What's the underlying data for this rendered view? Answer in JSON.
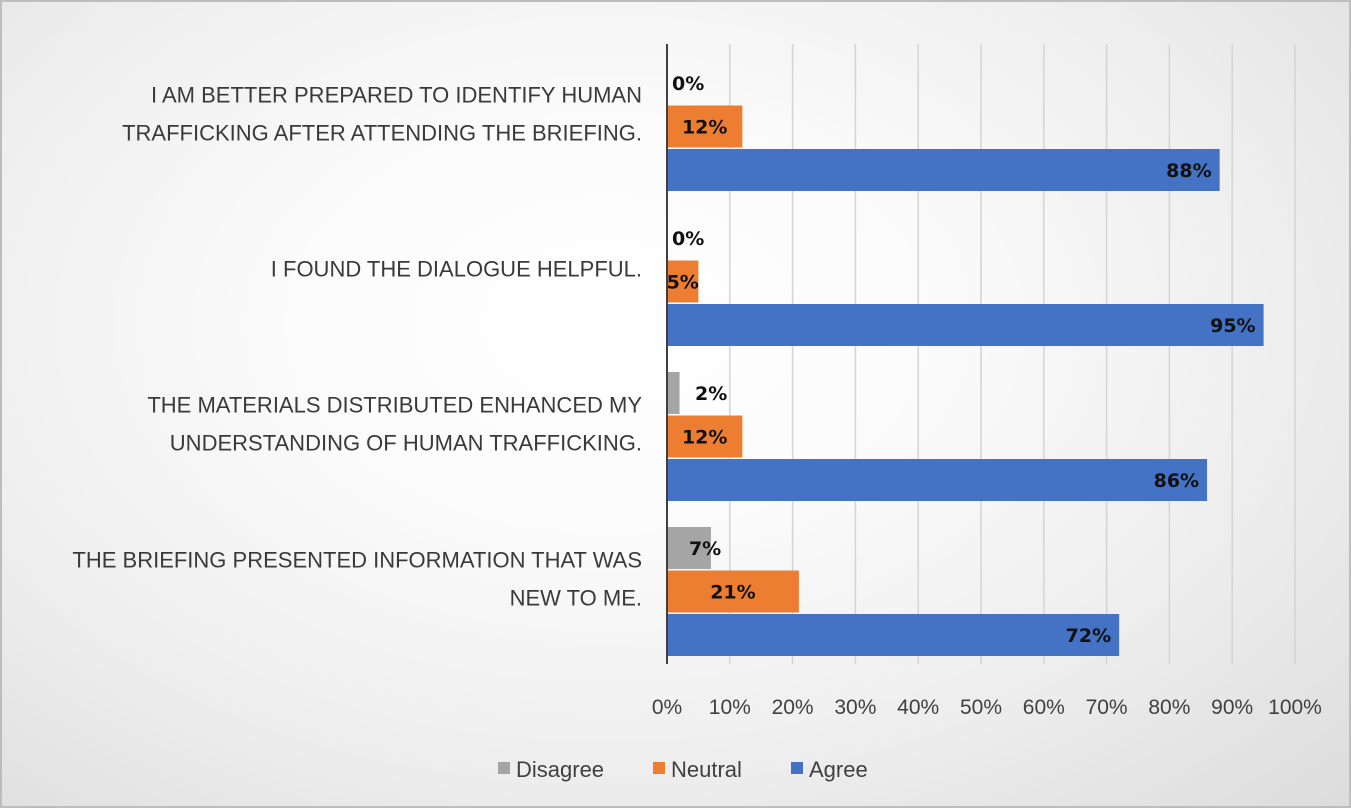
{
  "chart_data": {
    "type": "bar",
    "orientation": "horizontal",
    "categories": [
      [
        "I AM BETTER PREPARED TO IDENTIFY HUMAN",
        "TRAFFICKING AFTER ATTENDING THE BRIEFING."
      ],
      [
        "I FOUND THE DIALOGUE HELPFUL."
      ],
      [
        "THE MATERIALS DISTRIBUTED ENHANCED MY",
        "UNDERSTANDING OF HUMAN TRAFFICKING."
      ],
      [
        "THE BRIEFING PRESENTED INFORMATION THAT WAS",
        "NEW TO ME."
      ]
    ],
    "series": [
      {
        "name": "Disagree",
        "color": "#a5a5a5",
        "values": [
          0,
          0,
          2,
          7
        ],
        "labels": [
          "0%",
          "0%",
          "2%",
          "7%"
        ]
      },
      {
        "name": "Neutral",
        "color": "#ed7d31",
        "values": [
          12,
          5,
          12,
          21
        ],
        "labels": [
          "12%",
          "5%",
          "12%",
          "21%"
        ]
      },
      {
        "name": "Agree",
        "color": "#4472c4",
        "values": [
          88,
          95,
          86,
          72
        ],
        "labels": [
          "88%",
          "95%",
          "86%",
          "72%"
        ]
      }
    ],
    "x_ticks": [
      "0%",
      "10%",
      "20%",
      "30%",
      "40%",
      "50%",
      "60%",
      "70%",
      "80%",
      "90%",
      "100%"
    ],
    "xlim": [
      0,
      100
    ],
    "grid": true,
    "legend": {
      "position": "bottom",
      "entries": [
        "Disagree",
        "Neutral",
        "Agree"
      ]
    },
    "title": "",
    "xlabel": "",
    "ylabel": ""
  }
}
